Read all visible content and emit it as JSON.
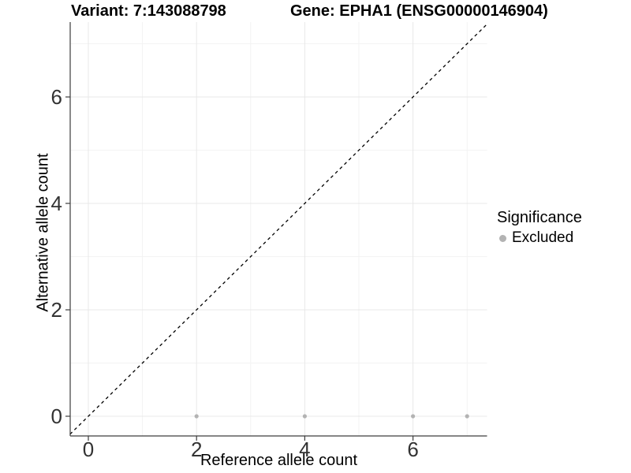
{
  "chart_data": {
    "type": "scatter",
    "title": "Variant: 7:143088798",
    "title_right": "Gene: EPHA1 (ENSG00000146904)",
    "xlabel": "Reference allele count",
    "ylabel": "Alternative allele count",
    "xlim": [
      -0.37,
      7.37
    ],
    "ylim": [
      -0.37,
      7.4
    ],
    "x_ticks": [
      0,
      2,
      4,
      6
    ],
    "y_ticks": [
      0,
      2,
      4,
      6
    ],
    "x_minor_ticks": [
      1,
      3,
      5,
      7
    ],
    "y_minor_ticks": [
      1,
      3,
      5,
      7
    ],
    "grid": true,
    "legend_position": "right",
    "series": [
      {
        "name": "Excluded",
        "color": "#b3b3b3",
        "points": [
          [
            2,
            0
          ],
          [
            4,
            0
          ],
          [
            6,
            0
          ],
          [
            7,
            0
          ]
        ]
      }
    ],
    "reference_line": {
      "label": "identity y = x",
      "style": "dashed",
      "color": "#000000",
      "from": [
        -0.34,
        -0.34
      ],
      "to": [
        7.37,
        7.37
      ]
    },
    "legend": {
      "title": "Significance",
      "entries": [
        {
          "label": "Excluded",
          "color": "#b3b3b3"
        }
      ]
    },
    "colors": {
      "background": "#ffffff",
      "grid_major": "#e8e8e8",
      "grid_minor": "#f3f3f3",
      "axis": "#3d3d3d",
      "reference": "#000000",
      "tick_text": "#333333"
    }
  }
}
